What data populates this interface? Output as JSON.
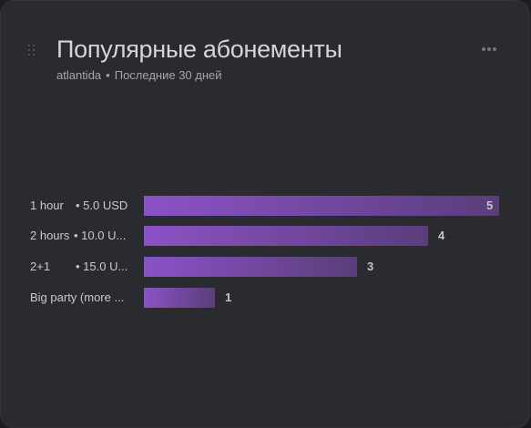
{
  "widget": {
    "title": "Популярные абонементы",
    "subtitle_account": "atlantida",
    "subtitle_separator": "•",
    "subtitle_period": "Последние 30 дней"
  },
  "colors": {
    "bar_start": "#8b52c6",
    "bar_end": "#5a3e7a",
    "card_background": "#2a2b2f"
  },
  "chart_data": {
    "type": "bar",
    "orientation": "horizontal",
    "categories": [
      {
        "name": "1 hour",
        "price": "• 5.0 USD"
      },
      {
        "name": "2 hours",
        "price": "• 10.0 U..."
      },
      {
        "name": "2+1",
        "price": "• 15.0  U..."
      },
      {
        "name": "Big party (more ...",
        "price": ""
      }
    ],
    "values": [
      5,
      4,
      3,
      1
    ],
    "xlim": [
      0,
      5
    ],
    "grid": false,
    "legend": "none",
    "title": "",
    "xlabel": "",
    "ylabel": ""
  }
}
